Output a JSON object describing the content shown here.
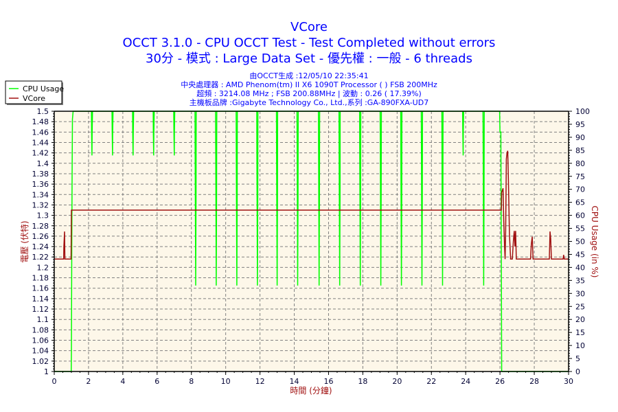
{
  "chart_data": {
    "type": "line",
    "title": "VCore",
    "subtitle_lines": [
      "OCCT 3.1.0 - CPU OCCT Test - Test Completed without errors",
      "30分 - 模式 : Large Data Set - 優先權 : 一般 - 6 threads"
    ],
    "info_lines": [
      "由OCCT生成 :12/05/10 22:35:41",
      "中央處理器 : AMD Phenom(tm) II X6 1090T Processor (  ) FSB 200MHz",
      "超頻 : 3214.08 MHz ; FSB 200.88MHz | 波動 : 0.26 ( 17.39%)",
      "主機板品牌 :Gigabyte Technology Co., Ltd.,系列 :GA-890FXA-UD7"
    ],
    "xlabel": "時間 (分鐘)",
    "ylabel": "電壓 (伏特)",
    "y2label": "CPU Usage (in %)",
    "xlim": [
      0,
      30
    ],
    "ylim": [
      1,
      1.5
    ],
    "y2lim": [
      0,
      100
    ],
    "grid": true,
    "legend_position": "top-left",
    "x_ticks": [
      "0",
      "2",
      "4",
      "6",
      "8",
      "10",
      "12",
      "14",
      "16",
      "18",
      "20",
      "22",
      "24",
      "26",
      "28",
      "30"
    ],
    "y_ticks": [
      "1",
      "1.02",
      "1.04",
      "1.06",
      "1.08",
      "1.1",
      "1.12",
      "1.14",
      "1.16",
      "1.18",
      "1.2",
      "1.22",
      "1.24",
      "1.26",
      "1.28",
      "1.3",
      "1.32",
      "1.34",
      "1.36",
      "1.38",
      "1.4",
      "1.42",
      "1.44",
      "1.46",
      "1.48",
      "1.5"
    ],
    "y2_ticks": [
      "0",
      "5",
      "10",
      "15",
      "20",
      "25",
      "30",
      "35",
      "40",
      "45",
      "50",
      "55",
      "60",
      "65",
      "70",
      "75",
      "80",
      "85",
      "90",
      "95",
      "100"
    ],
    "series": [
      {
        "name": "CPU Usage",
        "axis": "right",
        "color": "#00ff00",
        "points": [
          [
            0,
            0
          ],
          [
            0.99,
            0
          ],
          [
            1.0,
            8
          ],
          [
            1.02,
            45
          ],
          [
            1.04,
            75
          ],
          [
            1.06,
            97
          ],
          [
            1.1,
            100
          ],
          [
            2.17,
            100
          ],
          [
            2.18,
            92
          ],
          [
            2.2,
            83
          ],
          [
            2.21,
            92
          ],
          [
            2.23,
            100
          ],
          [
            3.37,
            100
          ],
          [
            3.38,
            92
          ],
          [
            3.4,
            83
          ],
          [
            3.41,
            92
          ],
          [
            3.43,
            100
          ],
          [
            4.57,
            100
          ],
          [
            4.58,
            92
          ],
          [
            4.6,
            83
          ],
          [
            4.61,
            92
          ],
          [
            4.63,
            100
          ],
          [
            5.77,
            100
          ],
          [
            5.78,
            92
          ],
          [
            5.8,
            83
          ],
          [
            5.81,
            92
          ],
          [
            5.83,
            100
          ],
          [
            6.97,
            100
          ],
          [
            6.98,
            92
          ],
          [
            7.0,
            83
          ],
          [
            7.01,
            92
          ],
          [
            7.03,
            100
          ],
          [
            8.21,
            100
          ],
          [
            8.22,
            83
          ],
          [
            8.25,
            33
          ],
          [
            8.27,
            67
          ],
          [
            8.28,
            100
          ],
          [
            9.41,
            100
          ],
          [
            9.42,
            83
          ],
          [
            9.45,
            33
          ],
          [
            9.47,
            67
          ],
          [
            9.48,
            100
          ],
          [
            10.61,
            100
          ],
          [
            10.62,
            83
          ],
          [
            10.65,
            33
          ],
          [
            10.67,
            67
          ],
          [
            10.68,
            100
          ],
          [
            11.81,
            100
          ],
          [
            11.82,
            83
          ],
          [
            11.85,
            33
          ],
          [
            11.87,
            67
          ],
          [
            11.88,
            100
          ],
          [
            12.96,
            100
          ],
          [
            12.97,
            83
          ],
          [
            13.0,
            33
          ],
          [
            13.02,
            67
          ],
          [
            13.03,
            100
          ],
          [
            14.16,
            100
          ],
          [
            14.17,
            83
          ],
          [
            14.2,
            33
          ],
          [
            14.22,
            67
          ],
          [
            14.23,
            100
          ],
          [
            15.41,
            100
          ],
          [
            15.42,
            83
          ],
          [
            15.45,
            33
          ],
          [
            15.47,
            67
          ],
          [
            15.48,
            100
          ],
          [
            16.61,
            100
          ],
          [
            16.62,
            83
          ],
          [
            16.65,
            33
          ],
          [
            16.67,
            67
          ],
          [
            16.68,
            100
          ],
          [
            17.81,
            100
          ],
          [
            17.82,
            83
          ],
          [
            17.85,
            33
          ],
          [
            17.87,
            67
          ],
          [
            17.88,
            100
          ],
          [
            19.01,
            100
          ],
          [
            19.02,
            83
          ],
          [
            19.05,
            33
          ],
          [
            19.07,
            67
          ],
          [
            19.08,
            100
          ],
          [
            20.21,
            100
          ],
          [
            20.22,
            83
          ],
          [
            20.25,
            33
          ],
          [
            20.27,
            67
          ],
          [
            20.28,
            100
          ],
          [
            21.41,
            100
          ],
          [
            21.42,
            83
          ],
          [
            21.45,
            33
          ],
          [
            21.47,
            67
          ],
          [
            21.48,
            100
          ],
          [
            22.61,
            100
          ],
          [
            22.62,
            83
          ],
          [
            22.65,
            33
          ],
          [
            22.67,
            67
          ],
          [
            22.68,
            100
          ],
          [
            23.82,
            100
          ],
          [
            23.83,
            92
          ],
          [
            23.85,
            83
          ],
          [
            23.86,
            92
          ],
          [
            23.88,
            100
          ],
          [
            25.01,
            100
          ],
          [
            25.02,
            83
          ],
          [
            25.05,
            33
          ],
          [
            25.07,
            67
          ],
          [
            25.08,
            100
          ],
          [
            25.98,
            100
          ],
          [
            26.0,
            92
          ],
          [
            26.05,
            92
          ],
          [
            26.08,
            42
          ],
          [
            26.1,
            0
          ],
          [
            30,
            0
          ]
        ]
      },
      {
        "name": "VCore",
        "axis": "left",
        "color": "#a01010",
        "points": [
          [
            0,
            1.216
          ],
          [
            0.55,
            1.216
          ],
          [
            0.56,
            1.24
          ],
          [
            0.6,
            1.269
          ],
          [
            0.62,
            1.216
          ],
          [
            0.98,
            1.216
          ],
          [
            1.0,
            1.31
          ],
          [
            26.08,
            1.31
          ],
          [
            26.1,
            1.344
          ],
          [
            26.18,
            1.352
          ],
          [
            26.22,
            1.29
          ],
          [
            26.27,
            1.236
          ],
          [
            26.3,
            1.216
          ],
          [
            26.33,
            1.27
          ],
          [
            26.37,
            1.408
          ],
          [
            26.41,
            1.42
          ],
          [
            26.45,
            1.424
          ],
          [
            26.49,
            1.367
          ],
          [
            26.55,
            1.265
          ],
          [
            26.62,
            1.216
          ],
          [
            26.72,
            1.216
          ],
          [
            26.78,
            1.25
          ],
          [
            26.83,
            1.27
          ],
          [
            26.87,
            1.24
          ],
          [
            26.91,
            1.27
          ],
          [
            26.95,
            1.216
          ],
          [
            27.78,
            1.216
          ],
          [
            27.83,
            1.245
          ],
          [
            27.88,
            1.259
          ],
          [
            27.93,
            1.216
          ],
          [
            28.88,
            1.216
          ],
          [
            28.92,
            1.269
          ],
          [
            28.96,
            1.255
          ],
          [
            29.0,
            1.216
          ],
          [
            29.68,
            1.216
          ],
          [
            29.71,
            1.224
          ],
          [
            29.75,
            1.216
          ],
          [
            30,
            1.216
          ]
        ]
      }
    ]
  }
}
